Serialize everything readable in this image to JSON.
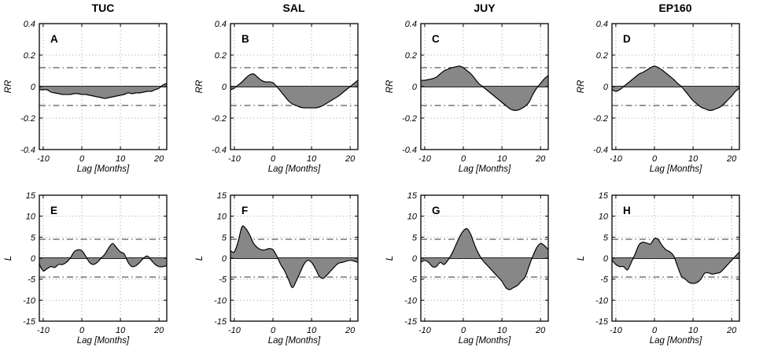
{
  "figure": {
    "columns": [
      "TUC",
      "SAL",
      "JUY",
      "EP160"
    ]
  },
  "chart_data": {
    "type": "area",
    "description": "Lagged response curves with dash-dot significance bounds; gray area filled to zero line",
    "xlabel": "Lag [Months]",
    "xlim": [
      -11,
      22
    ],
    "xticks": [
      -10,
      0,
      10,
      20
    ],
    "xtick_labels": [
      "-10",
      "0",
      "10",
      "20"
    ],
    "x": [
      -11,
      -10,
      -9,
      -8,
      -7,
      -6,
      -5,
      -4,
      -3,
      -2,
      -1,
      0,
      1,
      2,
      3,
      4,
      5,
      6,
      7,
      8,
      9,
      10,
      11,
      12,
      13,
      14,
      15,
      16,
      17,
      18,
      19,
      20,
      21,
      22
    ],
    "rows": {
      "RR": {
        "ylabel": "RR",
        "ylim": [
          -0.4,
          0.4
        ],
        "yticks": [
          0.4,
          0.2,
          0,
          -0.2,
          -0.4
        ],
        "ytick_labels": [
          "0.4",
          "0.2",
          "0",
          "-0.2",
          "-0.4"
        ],
        "significance_upper": 0.12,
        "significance_lower": -0.12
      },
      "L": {
        "ylabel": "L",
        "ylim": [
          -15,
          15
        ],
        "yticks": [
          15,
          10,
          5,
          0,
          -5,
          -10,
          -15
        ],
        "ytick_labels": [
          "15",
          "10",
          "5",
          "0",
          "-5",
          "-10",
          "-15"
        ],
        "significance_upper": 4.5,
        "significance_lower": -4.5
      }
    },
    "panels": [
      {
        "letter": "A",
        "column": "TUC",
        "row": "RR",
        "y": [
          -0.02,
          -0.02,
          -0.02,
          -0.035,
          -0.04,
          -0.045,
          -0.05,
          -0.05,
          -0.05,
          -0.045,
          -0.045,
          -0.05,
          -0.05,
          -0.055,
          -0.06,
          -0.065,
          -0.07,
          -0.075,
          -0.07,
          -0.065,
          -0.06,
          -0.055,
          -0.05,
          -0.04,
          -0.045,
          -0.04,
          -0.04,
          -0.035,
          -0.03,
          -0.03,
          -0.02,
          -0.01,
          0.01,
          0.02
        ]
      },
      {
        "letter": "B",
        "column": "SAL",
        "row": "RR",
        "y": [
          -0.02,
          -0.01,
          0.01,
          0.03,
          0.055,
          0.075,
          0.08,
          0.06,
          0.04,
          0.03,
          0.03,
          0.025,
          0.0,
          -0.03,
          -0.06,
          -0.09,
          -0.11,
          -0.12,
          -0.13,
          -0.135,
          -0.135,
          -0.135,
          -0.135,
          -0.13,
          -0.12,
          -0.105,
          -0.09,
          -0.075,
          -0.06,
          -0.04,
          -0.02,
          0.0,
          0.02,
          0.04
        ]
      },
      {
        "letter": "C",
        "column": "JUY",
        "row": "RR",
        "y": [
          0.04,
          0.04,
          0.045,
          0.05,
          0.06,
          0.08,
          0.1,
          0.11,
          0.12,
          0.125,
          0.13,
          0.12,
          0.1,
          0.08,
          0.05,
          0.02,
          0.0,
          -0.02,
          -0.04,
          -0.06,
          -0.08,
          -0.1,
          -0.12,
          -0.14,
          -0.15,
          -0.15,
          -0.14,
          -0.125,
          -0.1,
          -0.05,
          -0.01,
          0.02,
          0.05,
          0.07
        ]
      },
      {
        "letter": "D",
        "column": "EP160",
        "row": "RR",
        "y": [
          -0.02,
          -0.03,
          -0.02,
          0.0,
          0.02,
          0.04,
          0.06,
          0.08,
          0.09,
          0.105,
          0.12,
          0.13,
          0.12,
          0.105,
          0.085,
          0.065,
          0.045,
          0.02,
          0.0,
          -0.03,
          -0.06,
          -0.09,
          -0.11,
          -0.13,
          -0.14,
          -0.15,
          -0.15,
          -0.14,
          -0.13,
          -0.11,
          -0.085,
          -0.06,
          -0.03,
          -0.01
        ]
      },
      {
        "letter": "E",
        "column": "TUC",
        "row": "L",
        "y": [
          -1.5,
          -3.0,
          -2.5,
          -2.0,
          -2.2,
          -1.5,
          -1.5,
          -1.0,
          0.0,
          1.5,
          2.0,
          1.8,
          0.5,
          -1.0,
          -1.5,
          -1.0,
          0.0,
          1.0,
          2.5,
          3.5,
          2.5,
          1.5,
          1.0,
          -1.0,
          -2.0,
          -1.8,
          -1.0,
          0.0,
          0.5,
          -0.5,
          -1.5,
          -2.0,
          -2.0,
          -1.8
        ]
      },
      {
        "letter": "F",
        "column": "SAL",
        "row": "L",
        "y": [
          1.8,
          1.5,
          4.0,
          7.5,
          7.0,
          5.5,
          3.5,
          2.5,
          2.0,
          2.0,
          2.3,
          2.0,
          0.5,
          -1.5,
          -3.0,
          -5.0,
          -7.0,
          -5.5,
          -3.5,
          -1.5,
          -0.5,
          -1.0,
          -2.5,
          -4.3,
          -4.8,
          -4.0,
          -3.0,
          -2.0,
          -1.2,
          -1.0,
          -0.7,
          -0.5,
          -0.7,
          -1.0
        ]
      },
      {
        "letter": "G",
        "column": "JUY",
        "row": "L",
        "y": [
          -1.0,
          -0.5,
          -1.0,
          -2.0,
          -2.0,
          -1.0,
          -1.5,
          -0.5,
          1.0,
          3.0,
          5.0,
          6.5,
          7.0,
          5.5,
          3.0,
          1.0,
          -0.5,
          -1.5,
          -2.5,
          -3.5,
          -4.5,
          -5.5,
          -7.0,
          -7.5,
          -7.0,
          -6.5,
          -5.5,
          -4.5,
          -2.0,
          0.5,
          2.5,
          3.5,
          3.0,
          2.0
        ]
      },
      {
        "letter": "H",
        "column": "EP160",
        "row": "L",
        "y": [
          -0.5,
          -1.5,
          -2.0,
          -2.0,
          -2.8,
          -1.0,
          1.0,
          3.2,
          3.8,
          3.6,
          3.4,
          4.7,
          4.4,
          3.0,
          2.0,
          1.5,
          0.5,
          -2.0,
          -4.3,
          -5.0,
          -5.8,
          -6.0,
          -5.8,
          -5.0,
          -3.6,
          -3.5,
          -3.8,
          -3.6,
          -3.4,
          -2.5,
          -1.5,
          -0.5,
          0.5,
          1.5
        ]
      }
    ],
    "colors": {
      "fill": "#878787",
      "curve": "#000000",
      "significance": "#595959",
      "grid": "#a0a0a0",
      "axis": "#000000"
    },
    "legend_position": "none",
    "grid_on": true
  }
}
